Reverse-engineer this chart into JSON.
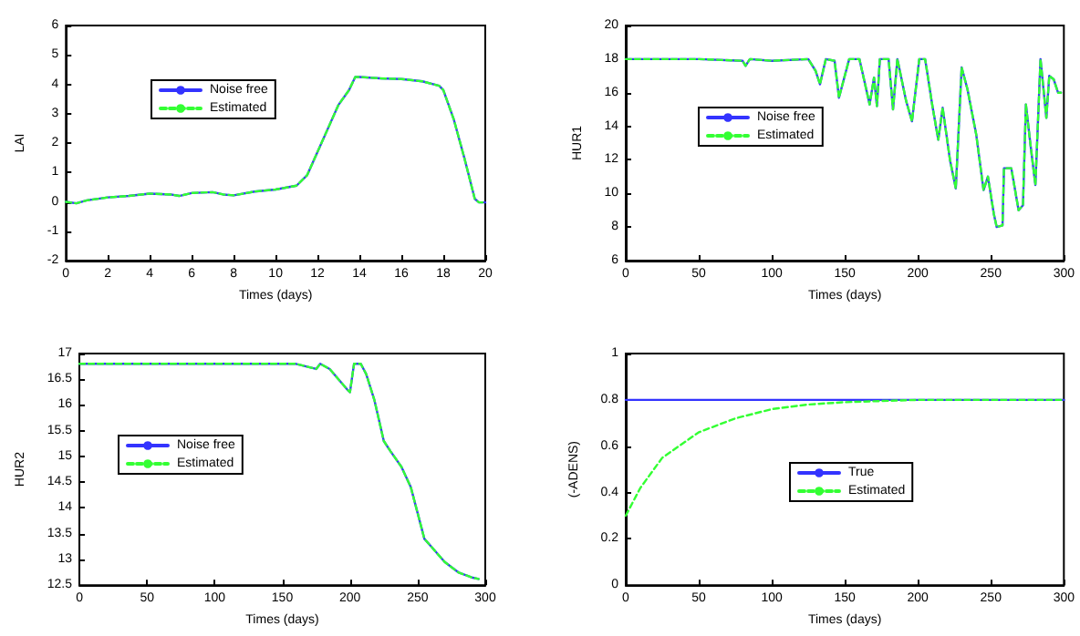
{
  "chart_data": [
    {
      "type": "line",
      "xlabel": "Times (days)",
      "ylabel": "LAI",
      "xlim": [
        0,
        20
      ],
      "ylim": [
        -2,
        6
      ],
      "xticks": [
        0,
        2,
        4,
        6,
        8,
        10,
        12,
        14,
        16,
        18,
        20
      ],
      "yticks": [
        -2,
        -1,
        0,
        1,
        2,
        3,
        4,
        5,
        6
      ],
      "grid": false,
      "legend": "upper left",
      "series": [
        {
          "name": "Noise free",
          "color": "#3333ff",
          "line_style": "solid",
          "x": [
            0,
            0.5,
            1,
            2,
            3,
            4,
            5,
            5.4,
            6,
            7,
            7.5,
            8,
            9,
            10,
            11,
            11.5,
            12,
            12.5,
            13,
            13.5,
            13.8,
            14,
            15,
            16,
            17,
            17.8,
            18,
            18.5,
            19,
            19.5,
            19.7,
            20
          ],
          "values": [
            0,
            -0.05,
            0.05,
            0.15,
            0.2,
            0.28,
            0.25,
            0.2,
            0.3,
            0.33,
            0.25,
            0.22,
            0.35,
            0.42,
            0.55,
            0.9,
            1.7,
            2.5,
            3.3,
            3.8,
            4.25,
            4.25,
            4.2,
            4.18,
            4.1,
            3.95,
            3.8,
            2.8,
            1.5,
            0.1,
            -0.02,
            -0.02
          ]
        },
        {
          "name": "Estimated",
          "color": "#33ff33",
          "line_style": "dashed",
          "x": [
            0,
            0.5,
            1,
            2,
            3,
            4,
            5,
            5.4,
            6,
            7,
            7.5,
            8,
            9,
            10,
            11,
            11.5,
            12,
            12.5,
            13,
            13.5,
            13.8,
            14,
            15,
            16,
            17,
            17.8,
            18,
            18.5,
            19,
            19.5,
            19.7,
            20
          ],
          "values": [
            0,
            -0.05,
            0.05,
            0.15,
            0.2,
            0.28,
            0.25,
            0.2,
            0.3,
            0.33,
            0.25,
            0.22,
            0.35,
            0.42,
            0.55,
            0.9,
            1.7,
            2.5,
            3.3,
            3.8,
            4.25,
            4.25,
            4.2,
            4.18,
            4.1,
            3.95,
            3.8,
            2.8,
            1.5,
            0.1,
            -0.02,
            -0.02
          ]
        }
      ]
    },
    {
      "type": "line",
      "xlabel": "Times (days)",
      "ylabel": "HUR1",
      "xlim": [
        0,
        300
      ],
      "ylim": [
        6,
        20
      ],
      "xticks": [
        0,
        50,
        100,
        150,
        200,
        250,
        300
      ],
      "yticks": [
        6,
        8,
        10,
        12,
        14,
        16,
        18,
        20
      ],
      "grid": false,
      "legend": "left",
      "series": [
        {
          "name": "Noise free",
          "color": "#3333ff",
          "line_style": "solid",
          "x": [
            0,
            50,
            80,
            82,
            85,
            100,
            125,
            130,
            133,
            137,
            143,
            146,
            153,
            160,
            167,
            170,
            172,
            174,
            180,
            183,
            186,
            192,
            196,
            201,
            205,
            210,
            214,
            217,
            222,
            226,
            230,
            234,
            240,
            245,
            248,
            252,
            254,
            258,
            259,
            264,
            269,
            272,
            274,
            277,
            280.5,
            284,
            288,
            290,
            293,
            296,
            298
          ],
          "values": [
            18,
            18,
            17.9,
            17.6,
            18,
            17.9,
            18,
            17.3,
            16.5,
            18,
            17.9,
            15.7,
            18,
            18,
            15.3,
            16.9,
            15.2,
            18,
            18,
            15,
            18,
            15.5,
            14.3,
            18,
            18,
            15.2,
            13.2,
            15.1,
            12,
            10.3,
            17.5,
            16.2,
            13.5,
            10.2,
            11,
            8.8,
            8,
            8.1,
            11.5,
            11.5,
            9,
            9.3,
            15.3,
            13,
            10.5,
            18,
            14.5,
            17,
            16.8,
            16,
            16
          ]
        },
        {
          "name": "Estimated",
          "color": "#33ff33",
          "line_style": "dashed",
          "x": [
            0,
            50,
            80,
            82,
            85,
            100,
            125,
            130,
            133,
            137,
            143,
            146,
            153,
            160,
            167,
            170,
            172,
            174,
            180,
            183,
            186,
            192,
            196,
            201,
            205,
            210,
            214,
            217,
            222,
            226,
            230,
            234,
            240,
            245,
            248,
            252,
            254,
            258,
            259,
            264,
            269,
            272,
            274,
            277,
            280.5,
            284,
            288,
            290,
            293,
            296,
            298
          ],
          "values": [
            18,
            18,
            17.9,
            17.6,
            18,
            17.9,
            18,
            17.3,
            16.5,
            18,
            17.9,
            15.7,
            18,
            18,
            15.3,
            16.9,
            15.2,
            18,
            18,
            15,
            18,
            15.5,
            14.3,
            18,
            18,
            15.2,
            13.2,
            15.1,
            12,
            10.3,
            17.5,
            16.2,
            13.5,
            10.2,
            11,
            8.8,
            8,
            8.1,
            11.5,
            11.5,
            9,
            9.3,
            15.3,
            13,
            10.5,
            18,
            14.5,
            17,
            16.8,
            16,
            16
          ]
        }
      ]
    },
    {
      "type": "line",
      "xlabel": "Times (days)",
      "ylabel": "HUR2",
      "xlim": [
        0,
        300
      ],
      "ylim": [
        12.5,
        17
      ],
      "xticks": [
        0,
        50,
        100,
        150,
        200,
        250,
        300
      ],
      "yticks": [
        12.5,
        13,
        13.5,
        14,
        14.5,
        15,
        15.5,
        16,
        16.5,
        17
      ],
      "grid": false,
      "legend": "left",
      "series": [
        {
          "name": "Noise free",
          "color": "#3333ff",
          "line_style": "solid",
          "x": [
            0,
            50,
            100,
            160,
            175,
            178,
            185,
            198,
            200,
            203,
            208,
            212,
            218,
            225,
            230,
            238,
            245,
            250,
            255,
            260,
            270,
            280,
            290,
            295
          ],
          "values": [
            16.8,
            16.8,
            16.8,
            16.8,
            16.7,
            16.8,
            16.7,
            16.3,
            16.25,
            16.8,
            16.8,
            16.6,
            16.1,
            15.3,
            15.1,
            14.8,
            14.4,
            13.9,
            13.4,
            13.25,
            12.95,
            12.75,
            12.65,
            12.62
          ]
        },
        {
          "name": "Estimated",
          "color": "#33ff33",
          "line_style": "dashed",
          "x": [
            0,
            50,
            100,
            160,
            175,
            178,
            185,
            198,
            200,
            203,
            208,
            212,
            218,
            225,
            230,
            238,
            245,
            250,
            255,
            260,
            270,
            280,
            290,
            295
          ],
          "values": [
            16.8,
            16.8,
            16.8,
            16.8,
            16.7,
            16.8,
            16.7,
            16.3,
            16.25,
            16.8,
            16.8,
            16.6,
            16.1,
            15.3,
            15.1,
            14.8,
            14.4,
            13.9,
            13.4,
            13.25,
            12.95,
            12.75,
            12.65,
            12.62
          ]
        }
      ]
    },
    {
      "type": "line",
      "xlabel": "Times (days)",
      "ylabel": "(-ADENS)",
      "xlim": [
        0,
        300
      ],
      "ylim": [
        0,
        1
      ],
      "xticks": [
        0,
        50,
        100,
        150,
        200,
        250,
        300
      ],
      "yticks": [
        0,
        0.2,
        0.4,
        0.6,
        0.8,
        1
      ],
      "grid": false,
      "legend": "center",
      "series": [
        {
          "name": "True",
          "color": "#3333ff",
          "line_style": "solid",
          "x": [
            0,
            300
          ],
          "values": [
            0.8,
            0.8
          ]
        },
        {
          "name": "Estimated",
          "color": "#33ff33",
          "line_style": "dashed",
          "x": [
            0,
            10,
            25,
            50,
            75,
            100,
            125,
            150,
            200,
            300
          ],
          "values": [
            0.3,
            0.42,
            0.55,
            0.66,
            0.72,
            0.76,
            0.78,
            0.79,
            0.8,
            0.8
          ]
        }
      ]
    }
  ]
}
